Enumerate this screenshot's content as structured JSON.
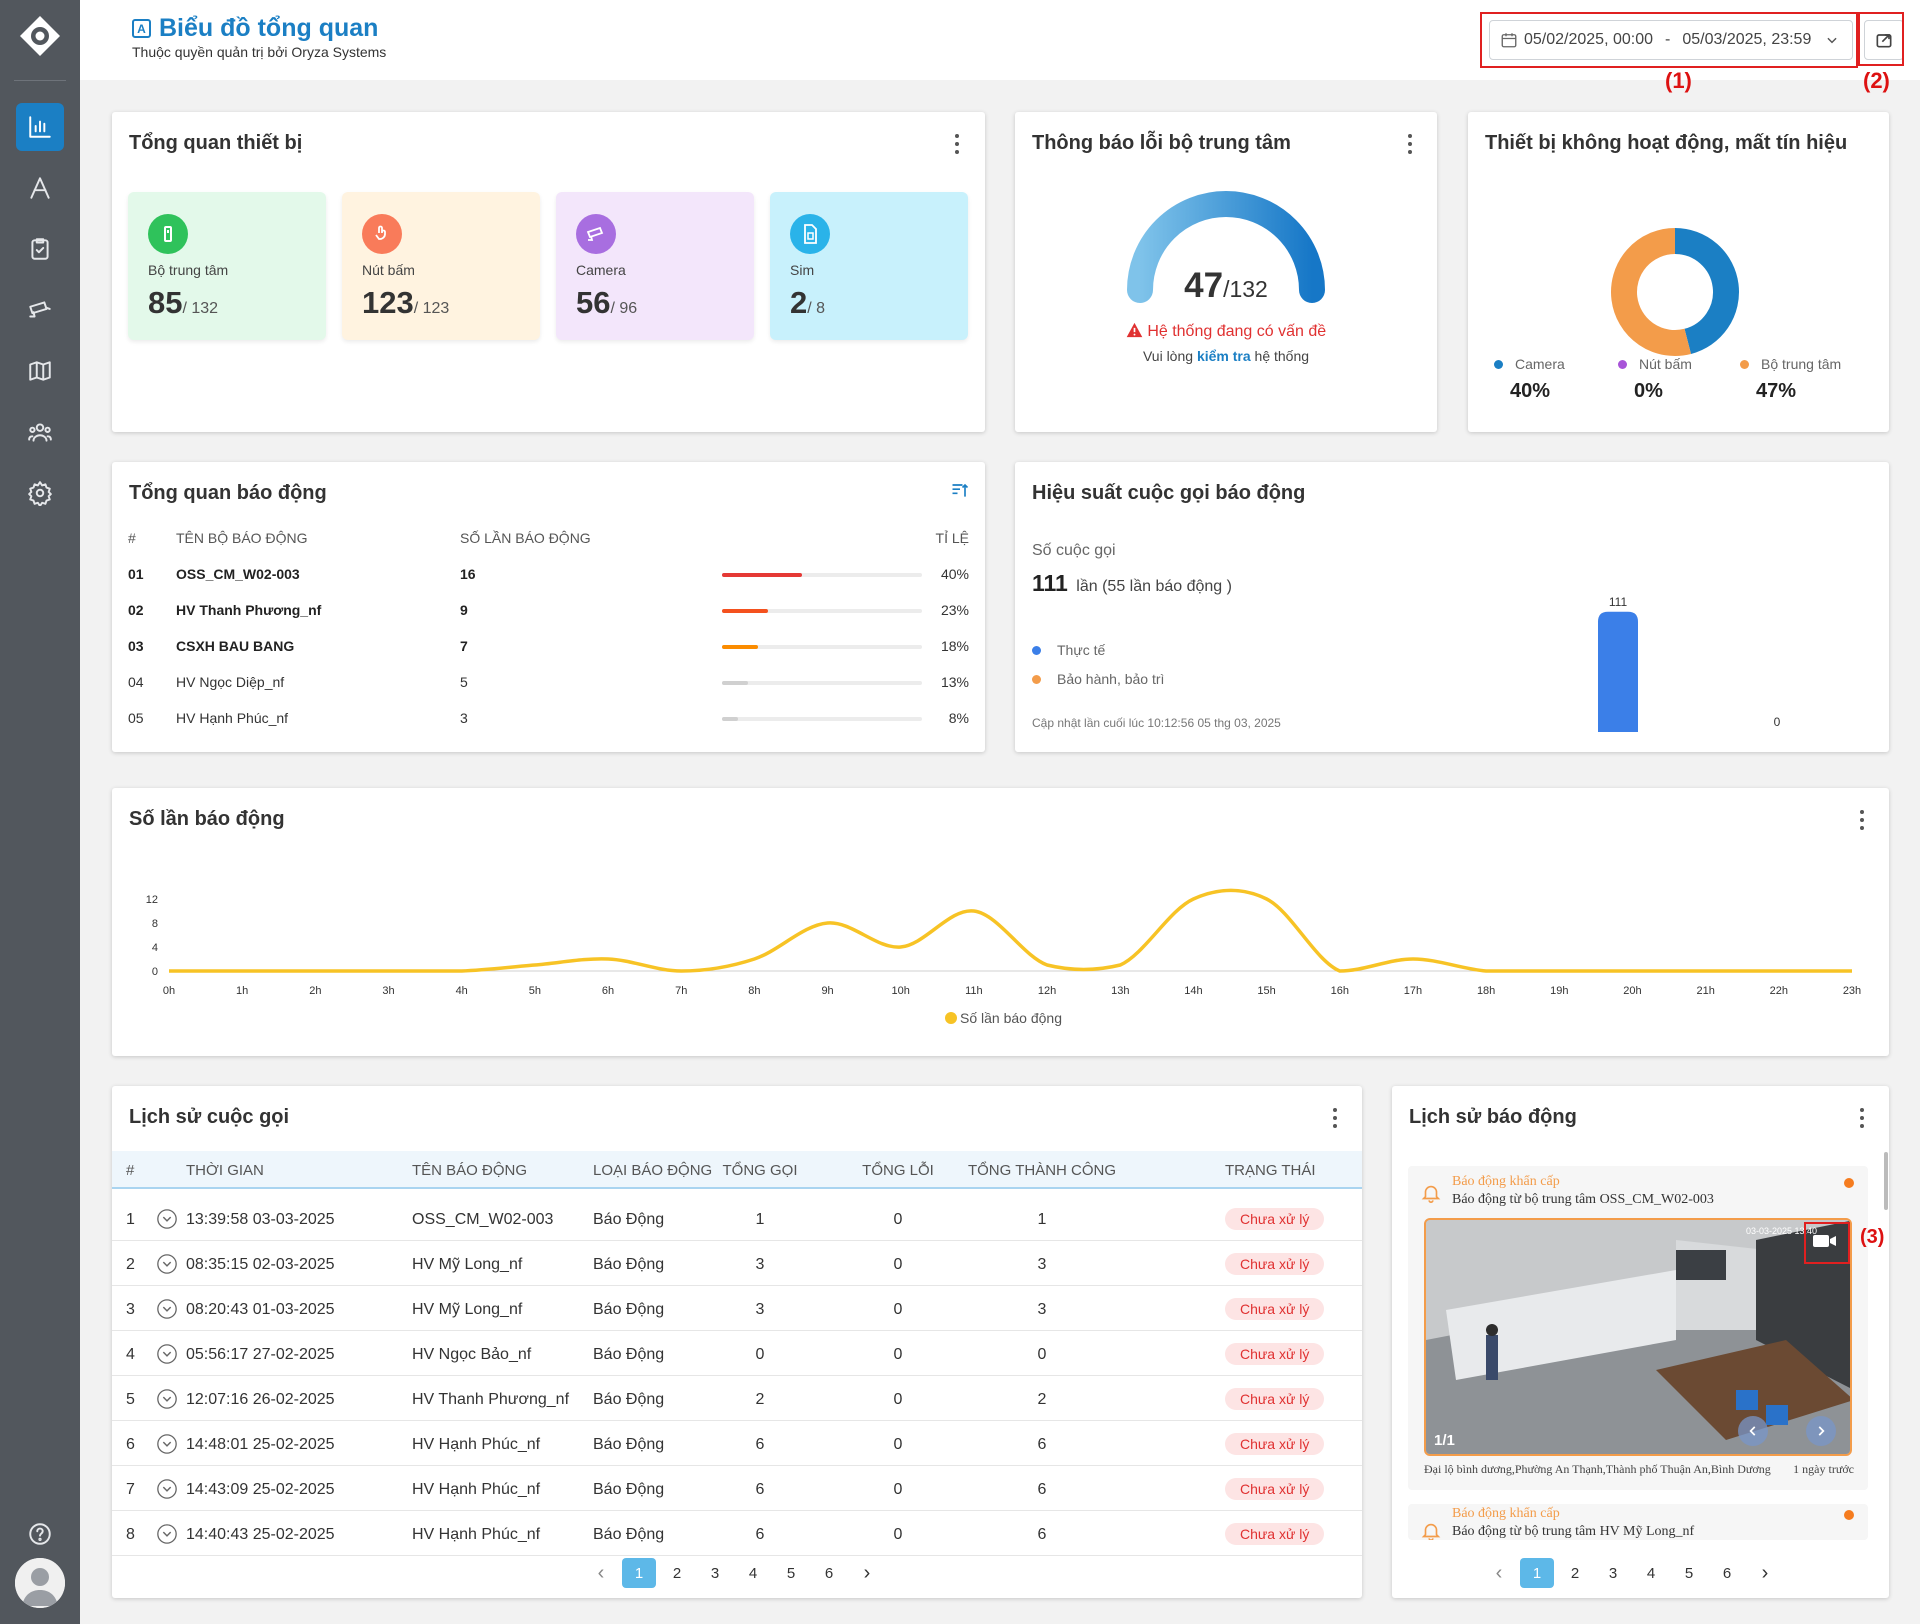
{
  "header": {
    "title": "Biểu đồ tổng quan",
    "subtitle": "Thuộc quyền quản trị bởi Oryza Systems",
    "date_from": "05/02/2025, 00:00",
    "date_sep": "-",
    "date_to": "05/03/2025, 23:59",
    "annot_1": "(1)",
    "annot_2": "(2)",
    "annot_3": "(3)"
  },
  "device_overview": {
    "title": "Tổng quan thiết bị",
    "stats": [
      {
        "label": "Bộ trung tâm",
        "value": "85",
        "total": "/ 132",
        "color": "#2fc25b",
        "bg": "#e3f9ea"
      },
      {
        "label": "Nút bấm",
        "value": "123",
        "total": "/ 123",
        "color": "#f97b5a",
        "bg": "#fff3e0"
      },
      {
        "label": "Camera",
        "value": "56",
        "total": "/ 96",
        "color": "#a86ee0",
        "bg": "#f3e6fb"
      },
      {
        "label": "Sim",
        "value": "2",
        "total": "/ 8",
        "color": "#2ab3e9",
        "bg": "#c8f1fc"
      }
    ]
  },
  "error_card": {
    "title": "Thông báo lỗi bộ trung tâm",
    "value": "47",
    "total": "/132",
    "gauge_fraction": 0.356,
    "warning": "Hệ thống đang có vấn đề",
    "hint_pre": "Vui lòng ",
    "hint_link": "kiểm tra",
    "hint_post": " hệ thống"
  },
  "inactive_card": {
    "title": "Thiết bị không hoạt động, mất tín hiệu",
    "legend": [
      {
        "label": "Camera",
        "pct": "40%",
        "value": 40,
        "color": "#1b7fc4"
      },
      {
        "label": "Nút bấm",
        "pct": "0%",
        "value": 0,
        "color": "#a854d8"
      },
      {
        "label": "Bộ trung tâm",
        "pct": "47%",
        "value": 47,
        "color": "#f39c4a"
      }
    ]
  },
  "alarm_overview": {
    "title": "Tổng quan báo động",
    "headers": [
      "#",
      "TÊN BỘ BÁO ĐỘNG",
      "SỐ LẦN BÁO ĐỘNG",
      "TỈ LỆ"
    ],
    "rows": [
      {
        "idx": "01",
        "name": "OSS_CM_W02-003",
        "count": "16",
        "pct": "40%",
        "ratio": 0.4,
        "color": "#e53935",
        "bold": true
      },
      {
        "idx": "02",
        "name": "HV Thanh Phương_nf",
        "count": "9",
        "pct": "23%",
        "ratio": 0.23,
        "color": "#f4511e",
        "bold": true
      },
      {
        "idx": "03",
        "name": "CSXH BAU BANG",
        "count": "7",
        "pct": "18%",
        "ratio": 0.18,
        "color": "#fb8c00",
        "bold": true
      },
      {
        "idx": "04",
        "name": "HV Ngọc Diệp_nf",
        "count": "5",
        "pct": "13%",
        "ratio": 0.13,
        "color": "#d0d0d0",
        "bold": false
      },
      {
        "idx": "05",
        "name": "HV Hạnh Phúc_nf",
        "count": "3",
        "pct": "8%",
        "ratio": 0.08,
        "color": "#d0d0d0",
        "bold": false
      }
    ]
  },
  "call_performance": {
    "title": "Hiệu suất cuộc gọi báo động",
    "calls_label": "Số cuộc gọi",
    "calls_value": "111",
    "calls_text": "lần (55 lần báo động )",
    "legend": [
      {
        "label": "Thực tế",
        "color": "#3b7fe8"
      },
      {
        "label": "Bảo hành, bảo trì",
        "color": "#f39c4a"
      }
    ],
    "updated": "Cập nhật lần cuối lúc 10:12:56 05 thg 03, 2025"
  },
  "chart_data": [
    {
      "type": "bar",
      "categories": [
        "Thực tế",
        "Bảo hành, bảo trì"
      ],
      "values": [
        111,
        0
      ],
      "data_labels": [
        "111",
        "0"
      ],
      "ylim": [
        0,
        120
      ]
    },
    {
      "type": "line",
      "title": "Số lần báo động",
      "x": [
        "0h",
        "1h",
        "2h",
        "3h",
        "4h",
        "5h",
        "6h",
        "7h",
        "8h",
        "9h",
        "10h",
        "11h",
        "12h",
        "13h",
        "14h",
        "15h",
        "16h",
        "17h",
        "18h",
        "19h",
        "20h",
        "21h",
        "22h",
        "23h"
      ],
      "series": [
        {
          "name": "Số lần báo động",
          "values": [
            0,
            0,
            0,
            0,
            0,
            1,
            2,
            0,
            2,
            8,
            4,
            10,
            1,
            1,
            12,
            12,
            0,
            2,
            0,
            0,
            0,
            0,
            0,
            0
          ],
          "color": "#f7c325"
        }
      ],
      "yticks": [
        0,
        4,
        8,
        12
      ],
      "ylim": [
        0,
        12
      ],
      "legend": "bottom"
    }
  ],
  "call_history": {
    "title": "Lịch sử cuộc gọi",
    "headers": [
      "#",
      "THỜI GIAN",
      "TÊN BÁO ĐỘNG",
      "LOẠI BÁO ĐỘNG",
      "TỔNG GỌI",
      "TỔNG LỖI",
      "TỔNG THÀNH CÔNG",
      "TRẠNG THÁI"
    ],
    "rows": [
      {
        "idx": "1",
        "time": "13:39:58 03-03-2025",
        "name": "OSS_CM_W02-003",
        "type": "Báo Động",
        "total": "1",
        "errors": "0",
        "success": "1",
        "status": "Chưa xử lý"
      },
      {
        "idx": "2",
        "time": "08:35:15 02-03-2025",
        "name": "HV Mỹ Long_nf",
        "type": "Báo Động",
        "total": "3",
        "errors": "0",
        "success": "3",
        "status": "Chưa xử lý"
      },
      {
        "idx": "3",
        "time": "08:20:43 01-03-2025",
        "name": "HV Mỹ Long_nf",
        "type": "Báo Động",
        "total": "3",
        "errors": "0",
        "success": "3",
        "status": "Chưa xử lý"
      },
      {
        "idx": "4",
        "time": "05:56:17 27-02-2025",
        "name": "HV Ngọc Bảo_nf",
        "type": "Báo Động",
        "total": "0",
        "errors": "0",
        "success": "0",
        "status": "Chưa xử lý"
      },
      {
        "idx": "5",
        "time": "12:07:16 26-02-2025",
        "name": "HV Thanh Phương_nf",
        "type": "Báo Động",
        "total": "2",
        "errors": "0",
        "success": "2",
        "status": "Chưa xử lý"
      },
      {
        "idx": "6",
        "time": "14:48:01 25-02-2025",
        "name": "HV Hạnh Phúc_nf",
        "type": "Báo Động",
        "total": "6",
        "errors": "0",
        "success": "6",
        "status": "Chưa xử lý"
      },
      {
        "idx": "7",
        "time": "14:43:09 25-02-2025",
        "name": "HV Hạnh Phúc_nf",
        "type": "Báo Động",
        "total": "6",
        "errors": "0",
        "success": "6",
        "status": "Chưa xử lý"
      },
      {
        "idx": "8",
        "time": "14:40:43 25-02-2025",
        "name": "HV Hạnh Phúc_nf",
        "type": "Báo Động",
        "total": "6",
        "errors": "0",
        "success": "6",
        "status": "Chưa xử lý"
      }
    ],
    "pages": [
      "1",
      "2",
      "3",
      "4",
      "5",
      "6"
    ],
    "prev": "‹",
    "next": "›"
  },
  "alarm_history": {
    "title": "Lịch sử báo động",
    "items": [
      {
        "kind": "Báo động khẩn cấp",
        "desc": "Báo động từ bộ trung tâm OSS_CM_W02-003",
        "cam_ts": "03-03-2025 13:40",
        "counter": "1/1",
        "location": "Đại lộ bình dương,Phường An Thạnh,Thành phố Thuận An,Bình Dương",
        "ago": "1 ngày trước"
      },
      {
        "kind": "Báo động khẩn cấp",
        "desc": "Báo động từ bộ trung tâm HV Mỹ Long_nf"
      }
    ],
    "pages": [
      "1",
      "2",
      "3",
      "4",
      "5",
      "6"
    ],
    "prev": "‹",
    "next": "›"
  }
}
